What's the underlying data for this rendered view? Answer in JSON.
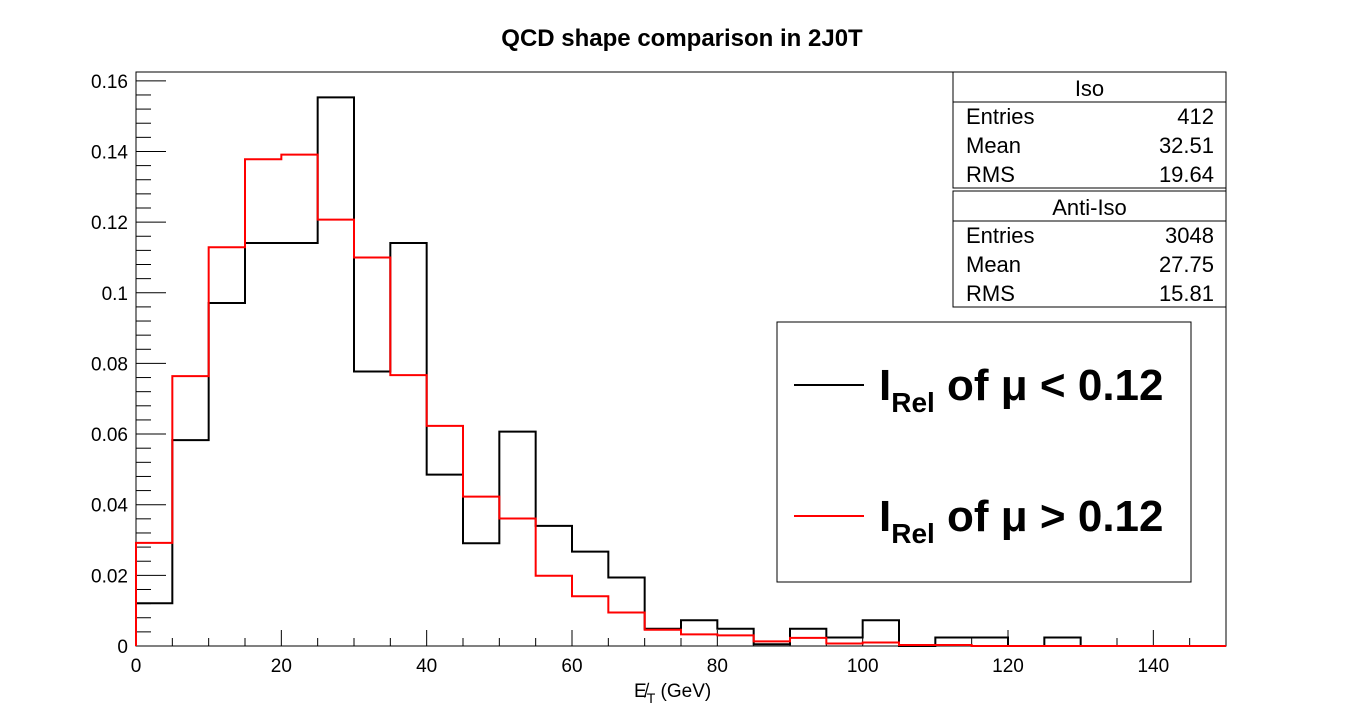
{
  "chart_data": {
    "type": "histogram",
    "title": "QCD shape comparison in 2J0T",
    "xlabel_main": "E̸",
    "xlabel_sub": "T",
    "xlabel_unit": " (GeV)",
    "ylabel": "",
    "xlim": [
      0,
      150
    ],
    "ylim": [
      0,
      0.1625
    ],
    "bin_width": 5,
    "x_ticks": [
      0,
      20,
      40,
      60,
      80,
      100,
      120,
      140
    ],
    "y_ticks": [
      0,
      0.02,
      0.04,
      0.06,
      0.08,
      0.1,
      0.12,
      0.14,
      0.16
    ],
    "y_tick_labels": [
      "0",
      "0.02",
      "0.04",
      "0.06",
      "0.08",
      "0.1",
      "0.12",
      "0.14",
      "0.16"
    ],
    "series": [
      {
        "name": "Iso",
        "color": "#000000",
        "bin_edges_start": 0,
        "values": [
          0.0121,
          0.0583,
          0.0971,
          0.1141,
          0.1141,
          0.1553,
          0.0777,
          0.1141,
          0.0485,
          0.0291,
          0.0607,
          0.034,
          0.0267,
          0.0194,
          0.0049,
          0.0073,
          0.0049,
          0.0005,
          0.0049,
          0.0024,
          0.0073,
          0.0,
          0.0024,
          0.0024,
          0.0,
          0.0024,
          0.0,
          0.0,
          0.0,
          0.0
        ]
      },
      {
        "name": "Anti-Iso",
        "color": "#ff0000",
        "bin_edges_start": 0,
        "values": [
          0.0292,
          0.0764,
          0.1129,
          0.1378,
          0.1391,
          0.1207,
          0.11,
          0.0767,
          0.0623,
          0.0423,
          0.0361,
          0.0199,
          0.0141,
          0.0095,
          0.0046,
          0.0033,
          0.003,
          0.0013,
          0.0023,
          0.0007,
          0.001,
          0.0003,
          0.0003,
          0.0,
          0.0,
          0.0,
          0.0,
          0.0,
          0.0,
          0.0
        ]
      }
    ],
    "stats": [
      {
        "name": "Iso",
        "rows": [
          {
            "label": "Entries",
            "value": "412"
          },
          {
            "label": "Mean",
            "value": "32.51"
          },
          {
            "label": "RMS",
            "value": "19.64"
          }
        ]
      },
      {
        "name": "Anti-Iso",
        "rows": [
          {
            "label": "Entries",
            "value": "3048"
          },
          {
            "label": "Mean",
            "value": "27.75"
          },
          {
            "label": "RMS",
            "value": "15.81"
          }
        ]
      }
    ],
    "legend": [
      {
        "color": "#000000",
        "main": "I",
        "sub": "Rel",
        "rest": " of μ < 0.12"
      },
      {
        "color": "#ff0000",
        "main": "I",
        "sub": "Rel",
        "rest": " of μ > 0.12"
      }
    ]
  }
}
